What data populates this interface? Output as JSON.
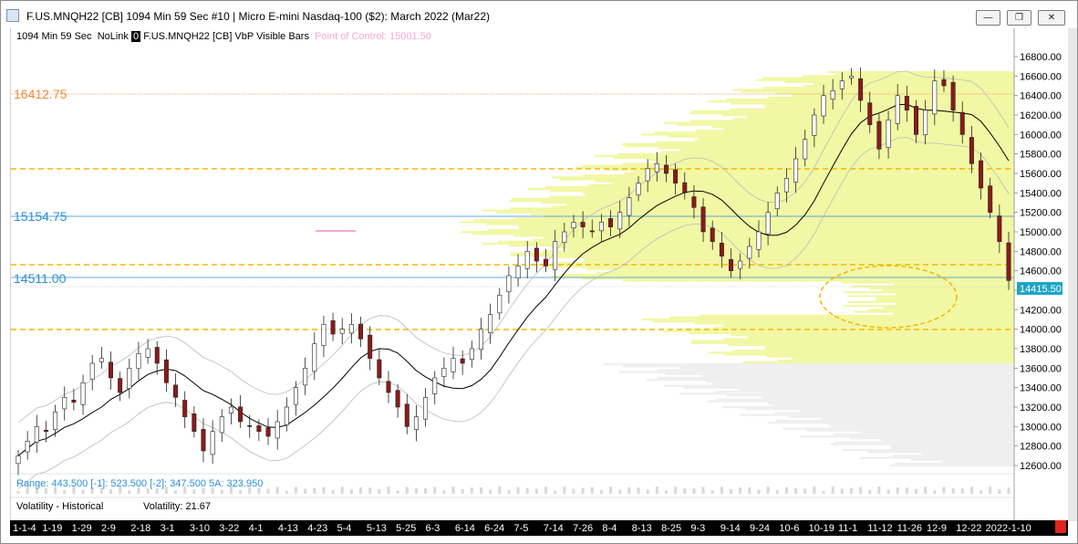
{
  "window": {
    "title": "F.US.MNQH22 [CB]  1094 Min 59 Sec   #10 | Micro E-mini Nasdaq-100 ($2): March 2022 (Mar22)",
    "minimize_glyph": "—",
    "maximize_glyph": "❐",
    "close_glyph": "✕"
  },
  "header": {
    "period": "1094 Min 59 Sec",
    "link": "NoLink",
    "link_index": "0",
    "symbol_study": "F.US.MNQH22 [CB] VbP Visible Bars",
    "poc": "Point of Control: 15001.50"
  },
  "levels": {
    "upper": "16412.75",
    "middle": "15154.75",
    "lower": "14511.00",
    "last_price": "14415.50"
  },
  "colors": {
    "up": "#ffffff",
    "down": "#8b1a1a",
    "volume_profile": "#f2f7a3",
    "level_orange": "#f08a3c",
    "level_blue": "#2b8fd6",
    "dashed": "#f5b800",
    "last_price_bg": "#1fa4c7"
  },
  "y_axis_ticks": [
    "16800.00",
    "16600.00",
    "16400.00",
    "16200.00",
    "16000.00",
    "15800.00",
    "15600.00",
    "15400.00",
    "15200.00",
    "15000.00",
    "14800.00",
    "14600.00",
    "14400.00",
    "14200.00",
    "14000.00",
    "13800.00",
    "13600.00",
    "13400.00",
    "13200.00",
    "13000.00",
    "12800.00",
    "12600.00"
  ],
  "range_study": {
    "text": "Range: 443.500  [-1]: 523.500  [-2]: 347.500  5A: 323.950"
  },
  "volatility_study": {
    "name": "Volatility - Historical",
    "value": "Volatility: 21.67"
  },
  "date_labels": [
    "1-1-4",
    "1-19",
    "1-29",
    "2-9",
    "2-18",
    "3-1",
    "3-10",
    "3-22",
    "4-1",
    "4-13",
    "4-23",
    "5-4",
    "5-13",
    "5-25",
    "6-3",
    "6-14",
    "6-24",
    "7-5",
    "7-14",
    "7-26",
    "8-4",
    "8-13",
    "8-25",
    "9-3",
    "9-14",
    "9-24",
    "10-6",
    "10-19",
    "11-1",
    "11-12",
    "11-26",
    "12-9",
    "12-22",
    "2022-1-10"
  ],
  "chart_data": {
    "type": "candlestick",
    "y_range": [
      12500,
      16900
    ],
    "closes": [
      12700,
      12850,
      13000,
      12950,
      13150,
      13300,
      13250,
      13450,
      13650,
      13700,
      13500,
      13350,
      13600,
      13750,
      13800,
      13650,
      13450,
      13300,
      13100,
      12950,
      12750,
      12950,
      13100,
      13200,
      13050,
      13000,
      12950,
      12900,
      13050,
      13200,
      13400,
      13600,
      13850,
      14050,
      13950,
      14000,
      14050,
      13900,
      13700,
      13500,
      13350,
      13200,
      13000,
      13100,
      13300,
      13500,
      13600,
      13700,
      13650,
      13800,
      14000,
      14150,
      14350,
      14550,
      14650,
      14800,
      14700,
      14650,
      14900,
      15000,
      15100,
      15050,
      15000,
      15100,
      15050,
      15200,
      15350,
      15500,
      15650,
      15700,
      15600,
      15500,
      15400,
      15250,
      15000,
      14900,
      14750,
      14600,
      14700,
      14850,
      15000,
      15200,
      15400,
      15550,
      15750,
      15950,
      16200,
      16400,
      16450,
      16550,
      16600,
      16350,
      16100,
      15850,
      16150,
      16400,
      16250,
      16000,
      16250,
      16550,
      16500,
      16250,
      16000,
      15700,
      15450,
      15200,
      14900,
      14500
    ]
  }
}
